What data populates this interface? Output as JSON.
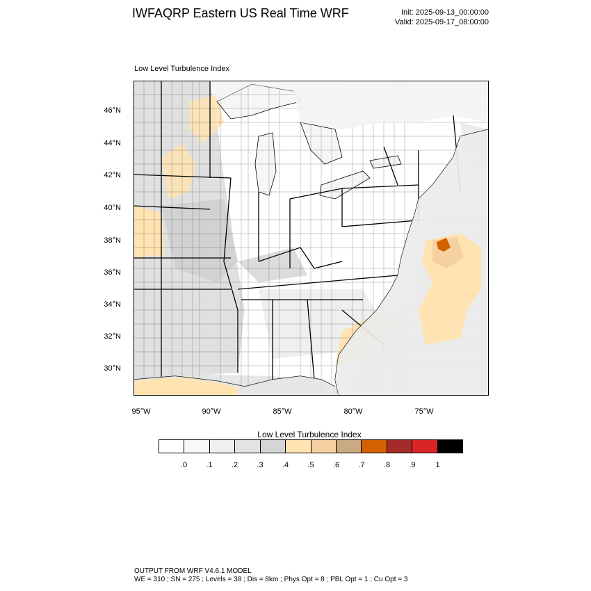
{
  "header": {
    "title": "IWFAQRP Eastern US Real Time WRF",
    "init": "Init: 2025-09-13_00:00:00",
    "valid": "Valid: 2025-09-17_08:00:00"
  },
  "plot": {
    "title": "Low Level Turbulence Index",
    "lat_labels": [
      "46°N",
      "44°N",
      "42°N",
      "40°N",
      "38°N",
      "36°N",
      "34°N",
      "32°N",
      "30°N"
    ],
    "lon_labels": [
      "95°W",
      "90°W",
      "85°W",
      "80°W",
      "75°W"
    ]
  },
  "colorbar": {
    "title": "Low Level Turbulence Index",
    "colors": [
      "#ffffff",
      "#f8f8f8",
      "#efefef",
      "#e2e2e2",
      "#d4d4d4",
      "#ffe3b2",
      "#f5d0a0",
      "#c9a982",
      "#d26200",
      "#a52a2a",
      "#d82528",
      "#000000"
    ],
    "labels": [
      ".0",
      ".1",
      ".2",
      ".3",
      ".4",
      ".5",
      ".6",
      ".7",
      ".8",
      ".9",
      "1"
    ]
  },
  "map_colors": {
    "land_base": "#ffffff",
    "light_gray": "#efefef",
    "mid_gray": "#e0e0e0",
    "dark_gray": "#d2d2d2",
    "peach": "#ffe3b2",
    "tan": "#f5d0a0",
    "orange": "#d26200",
    "border": "#000000"
  },
  "footer": {
    "line1": "OUTPUT FROM WRF V4.6.1 MODEL",
    "line2": "WE = 310 ; SN = 275 ; Levels = 38 ; Dis = 8km ; Phys Opt = 8 ; PBL Opt = 1 ; Cu Opt = 3"
  }
}
